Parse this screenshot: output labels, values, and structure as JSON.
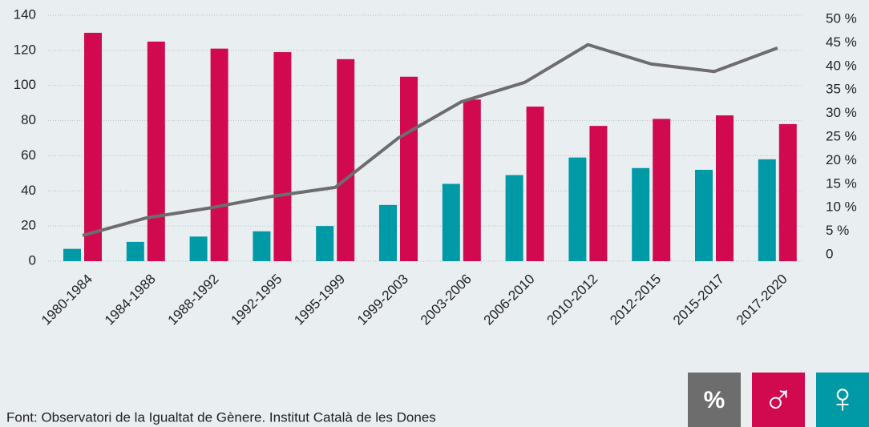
{
  "chart_data": {
    "type": "bar",
    "categories": [
      "1980-1984",
      "1984-1988",
      "1988-1992",
      "1992-1995",
      "1995-1999",
      "1999-2003",
      "2003-2006",
      "2006-2010",
      "2010-2012",
      "2012-2015",
      "2015-2017",
      "2017-2020"
    ],
    "series": [
      {
        "name": "♀",
        "color": "#0099a6",
        "values": [
          7,
          11,
          14,
          17,
          20,
          32,
          44,
          49,
          59,
          53,
          52,
          58
        ]
      },
      {
        "name": "♂",
        "color": "#d10a50",
        "values": [
          130,
          125,
          121,
          119,
          115,
          105,
          92,
          88,
          77,
          81,
          83,
          78
        ]
      },
      {
        "name": "%",
        "color": "#6d6d6d",
        "axis": "y2",
        "values": [
          4.1,
          7.8,
          9.9,
          12.4,
          14.3,
          24.8,
          32.5,
          36.6,
          44.6,
          40.5,
          38.9,
          43.9
        ]
      }
    ],
    "ylim": [
      0,
      140
    ],
    "yticks": [
      0,
      20,
      40,
      60,
      80,
      100,
      120,
      140
    ],
    "y2lim": [
      0,
      50
    ],
    "y2ticks": [
      0,
      {
        "value": 5,
        "label": "5 %"
      },
      {
        "value": 10,
        "label": "10 %"
      },
      {
        "value": 15,
        "label": "15 %"
      },
      {
        "value": 20,
        "label": "20 %"
      },
      {
        "value": 25,
        "label": "25 %"
      },
      {
        "value": 30,
        "label": "30 %"
      },
      {
        "value": 35,
        "label": "35 %"
      },
      {
        "value": 40,
        "label": "40 %"
      },
      {
        "value": 45,
        "label": "45 %"
      },
      {
        "value": 50,
        "label": "50 %"
      }
    ],
    "grid": true,
    "source": "Font: Observatori de la Igualtat de Gènere. Institut Català de les Dones"
  }
}
